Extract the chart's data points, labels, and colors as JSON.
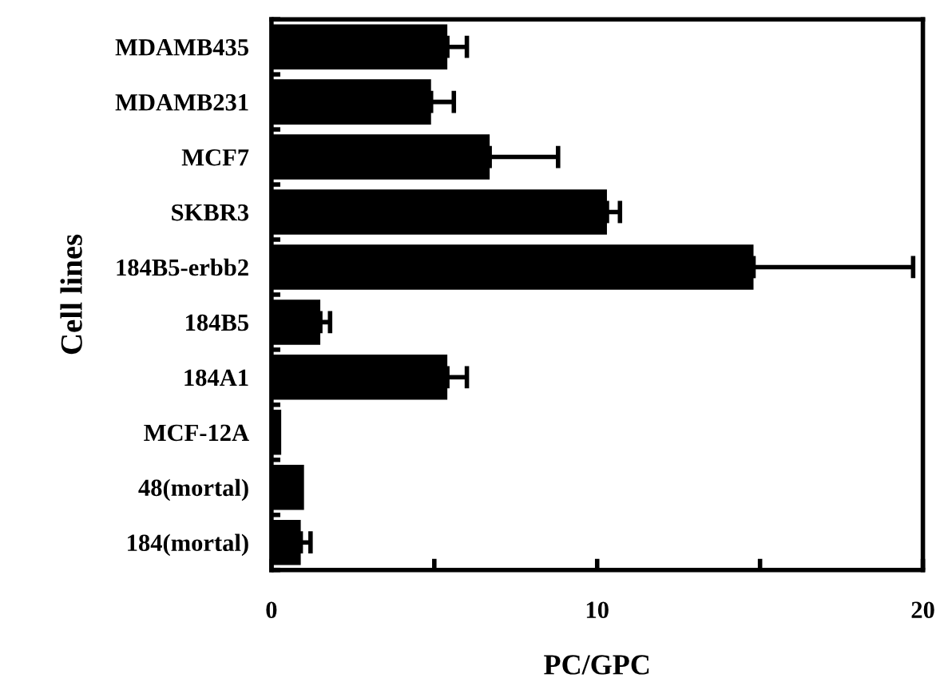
{
  "chart_data": {
    "type": "bar",
    "orientation": "horizontal",
    "xlabel": "PC/GPC",
    "ylabel": "Cell lines",
    "categories": [
      "MDAMB435",
      "MDAMB231",
      "MCF7",
      "SKBR3",
      "184B5-erbb2",
      "184B5",
      "184A1",
      "MCF-12A",
      "48(mortal)",
      "184(mortal)"
    ],
    "values": [
      5.4,
      4.9,
      6.7,
      10.3,
      14.8,
      1.5,
      5.4,
      0.3,
      1.0,
      0.9
    ],
    "errors": [
      [
        5.4,
        6.0
      ],
      [
        4.9,
        5.6
      ],
      [
        6.7,
        8.8
      ],
      [
        10.3,
        10.7
      ],
      [
        14.8,
        19.7
      ],
      [
        1.5,
        1.8
      ],
      [
        5.4,
        6.0
      ],
      null,
      null,
      [
        0.9,
        1.2
      ]
    ],
    "color": "#000000",
    "xlim": [
      0,
      20
    ],
    "xticks": [
      0,
      {
        "value": 5,
        "label": null
      },
      10,
      {
        "value": 15,
        "label": null
      },
      20
    ],
    "grid": false,
    "legend": false
  }
}
